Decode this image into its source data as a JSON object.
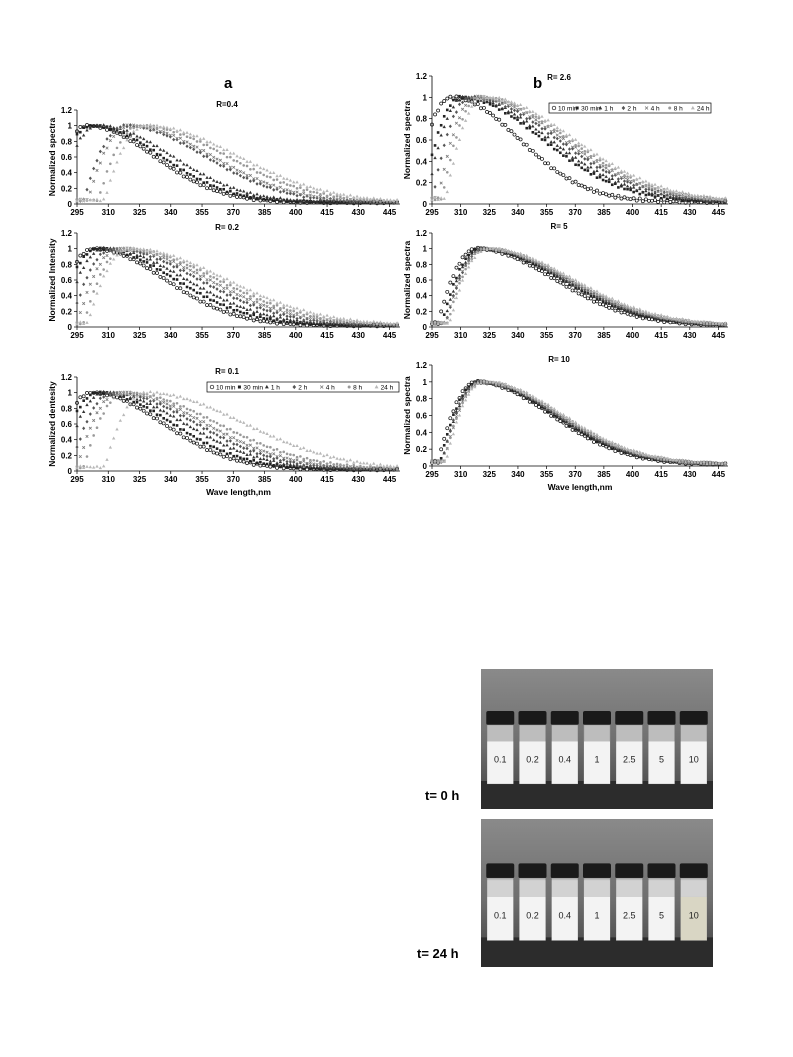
{
  "panel_letters": {
    "a": "a",
    "b": "b"
  },
  "legend_series": [
    "10 min",
    "30 min",
    "1 h",
    "2 h",
    "4 h",
    "8 h",
    "24 h"
  ],
  "x_ticks": [
    "295",
    "310",
    "325",
    "340",
    "355",
    "370",
    "385",
    "400",
    "415",
    "430",
    "445"
  ],
  "xlim": [
    295,
    450
  ],
  "chart_data": [
    {
      "type": "scatter",
      "title": "R=0.4",
      "xlabel": "",
      "ylabel": "Normalized spectra",
      "ylim": [
        0,
        1.2
      ],
      "y_ticks": [
        "0",
        "0.2",
        "0.4",
        "0.6",
        "0.8",
        "1",
        "1.2"
      ],
      "peaks": [
        300,
        302,
        305,
        318,
        320,
        325,
        328
      ],
      "widths": [
        45,
        47,
        50,
        54,
        56,
        59,
        62
      ],
      "series": [
        {
          "name": "10 min"
        },
        {
          "name": "30 min"
        },
        {
          "name": "1 h"
        },
        {
          "name": "2 h"
        },
        {
          "name": "4 h"
        },
        {
          "name": "8 h"
        },
        {
          "name": "24 h"
        }
      ]
    },
    {
      "type": "scatter",
      "title": "R= 0.2",
      "xlabel": "",
      "ylabel": "Normalized Intensity",
      "ylim": [
        0,
        1.2
      ],
      "y_ticks": [
        "0",
        "0.2",
        "0.4",
        "0.6",
        "0.8",
        "1",
        "1.2"
      ],
      "peaks": [
        303,
        305,
        308,
        312,
        315,
        318,
        320
      ],
      "widths": [
        48,
        52,
        55,
        58,
        60,
        62,
        65
      ],
      "series": [
        {
          "name": "10 min"
        },
        {
          "name": "30 min"
        },
        {
          "name": "1 h"
        },
        {
          "name": "2 h"
        },
        {
          "name": "4 h"
        },
        {
          "name": "8 h"
        },
        {
          "name": "24 h"
        }
      ]
    },
    {
      "type": "scatter",
      "title": "R= 0.1",
      "xlabel": "Wave length,nm",
      "ylabel": "Normalized dentesity",
      "ylim": [
        0,
        1.2
      ],
      "y_ticks": [
        "0",
        "0.2",
        "0.4",
        "0.6",
        "0.8",
        "1",
        "1.2"
      ],
      "legend": "top-right",
      "peaks": [
        302,
        305,
        308,
        312,
        315,
        318,
        328
      ],
      "widths": [
        48,
        50,
        54,
        56,
        58,
        62,
        66
      ],
      "series": [
        {
          "name": "10 min"
        },
        {
          "name": "30 min"
        },
        {
          "name": "1 h"
        },
        {
          "name": "2 h"
        },
        {
          "name": "4 h"
        },
        {
          "name": "8 h"
        },
        {
          "name": "24 h"
        }
      ]
    },
    {
      "type": "scatter",
      "title": "R= 2.6",
      "xlabel": "",
      "ylabel": "Normalized spectra",
      "ylim": [
        0,
        1.2
      ],
      "y_ticks": [
        "0",
        "0.2",
        "0.4",
        "0.6",
        "0.8",
        "1",
        "1.2"
      ],
      "legend": "top-right",
      "peaks": [
        305,
        310,
        312,
        315,
        318,
        320,
        322
      ],
      "widths": [
        50,
        60,
        62,
        64,
        64,
        65,
        66
      ],
      "series": [
        {
          "name": "10 min"
        },
        {
          "name": "30 min"
        },
        {
          "name": "1 h"
        },
        {
          "name": "2 h"
        },
        {
          "name": "4 h"
        },
        {
          "name": "8 h"
        },
        {
          "name": "24 h"
        }
      ]
    },
    {
      "type": "scatter",
      "title": "R= 5",
      "xlabel": "",
      "ylabel": "Normalized spectra",
      "ylim": [
        0,
        1.2
      ],
      "y_ticks": [
        "0",
        "0.2",
        "0.4",
        "0.6",
        "0.8",
        "1",
        "1.2"
      ],
      "peaks": [
        318,
        320,
        321,
        322,
        322,
        323,
        324
      ],
      "widths": [
        58,
        60,
        60,
        61,
        62,
        62,
        63
      ],
      "series": [
        {
          "name": "10 min"
        },
        {
          "name": "30 min"
        },
        {
          "name": "1 h"
        },
        {
          "name": "2 h"
        },
        {
          "name": "4 h"
        },
        {
          "name": "8 h"
        },
        {
          "name": "24 h"
        }
      ]
    },
    {
      "type": "scatter",
      "title": "R= 10",
      "xlabel": "Wave length,nm",
      "ylabel": "Normalized spectra",
      "ylim": [
        0,
        1.2
      ],
      "y_ticks": [
        "0",
        "0.2",
        "0.4",
        "0.6",
        "0.8",
        "1",
        "1.2"
      ],
      "peaks": [
        318,
        319,
        320,
        320,
        321,
        321,
        322
      ],
      "widths": [
        55,
        56,
        56,
        57,
        57,
        58,
        58
      ],
      "series": [
        {
          "name": "10 min"
        },
        {
          "name": "30 min"
        },
        {
          "name": "1 h"
        },
        {
          "name": "2 h"
        },
        {
          "name": "4 h"
        },
        {
          "name": "8 h"
        },
        {
          "name": "24 h"
        }
      ]
    }
  ],
  "photos": {
    "top": {
      "label": "t= 0 h",
      "vials": [
        "0.1",
        "0.2",
        "0.4",
        "1",
        "2.5",
        "5",
        "10"
      ]
    },
    "bottom": {
      "label": "t= 24 h",
      "vials": [
        "0.1",
        "0.2",
        "0.4",
        "1",
        "2.5",
        "5",
        "10"
      ]
    }
  },
  "colors": {
    "series": [
      "#111111",
      "#222222",
      "#333333",
      "#555555",
      "#777777",
      "#999999",
      "#b8b8b8"
    ]
  }
}
